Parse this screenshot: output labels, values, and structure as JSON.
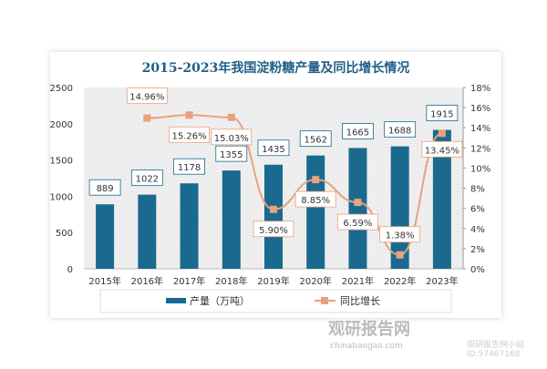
{
  "chart_data": {
    "type": "bar+line",
    "title": "2015-2023年我国淀粉糖产量及同比增长情况",
    "categories": [
      "2015年",
      "2016年",
      "2017年",
      "2018年",
      "2019年",
      "2020年",
      "2021年",
      "2022年",
      "2023年"
    ],
    "series": [
      {
        "name": "产量（万吨）",
        "type": "bar",
        "axis": "left",
        "color": "#1a6a8f",
        "values": [
          889,
          1022,
          1178,
          1355,
          1435,
          1562,
          1665,
          1688,
          1915
        ]
      },
      {
        "name": "同比增长",
        "type": "line",
        "axis": "right",
        "color": "#e8a27e",
        "values": [
          null,
          14.96,
          15.26,
          15.03,
          5.9,
          8.85,
          6.59,
          1.38,
          13.45
        ],
        "labels": [
          "",
          "14.96%",
          "15.26%",
          "15.03%",
          "5.90%",
          "8.85%",
          "6.59%",
          "1.38%",
          "13.45%"
        ]
      }
    ],
    "yleft": {
      "lim": [
        0,
        2500
      ],
      "ticks": [
        "0",
        "500",
        "1000",
        "1500",
        "2000",
        "2500"
      ]
    },
    "yright": {
      "lim": [
        0,
        18
      ],
      "ticks": [
        "0%",
        "2%",
        "4%",
        "6%",
        "8%",
        "10%",
        "12%",
        "14%",
        "16%",
        "18%"
      ]
    },
    "legend": "bottom"
  },
  "watermark": {
    "brand": "观研报告网",
    "url": "chinabaogao.com",
    "line1": "观研报告网小站",
    "line2": "ID:57467168"
  }
}
